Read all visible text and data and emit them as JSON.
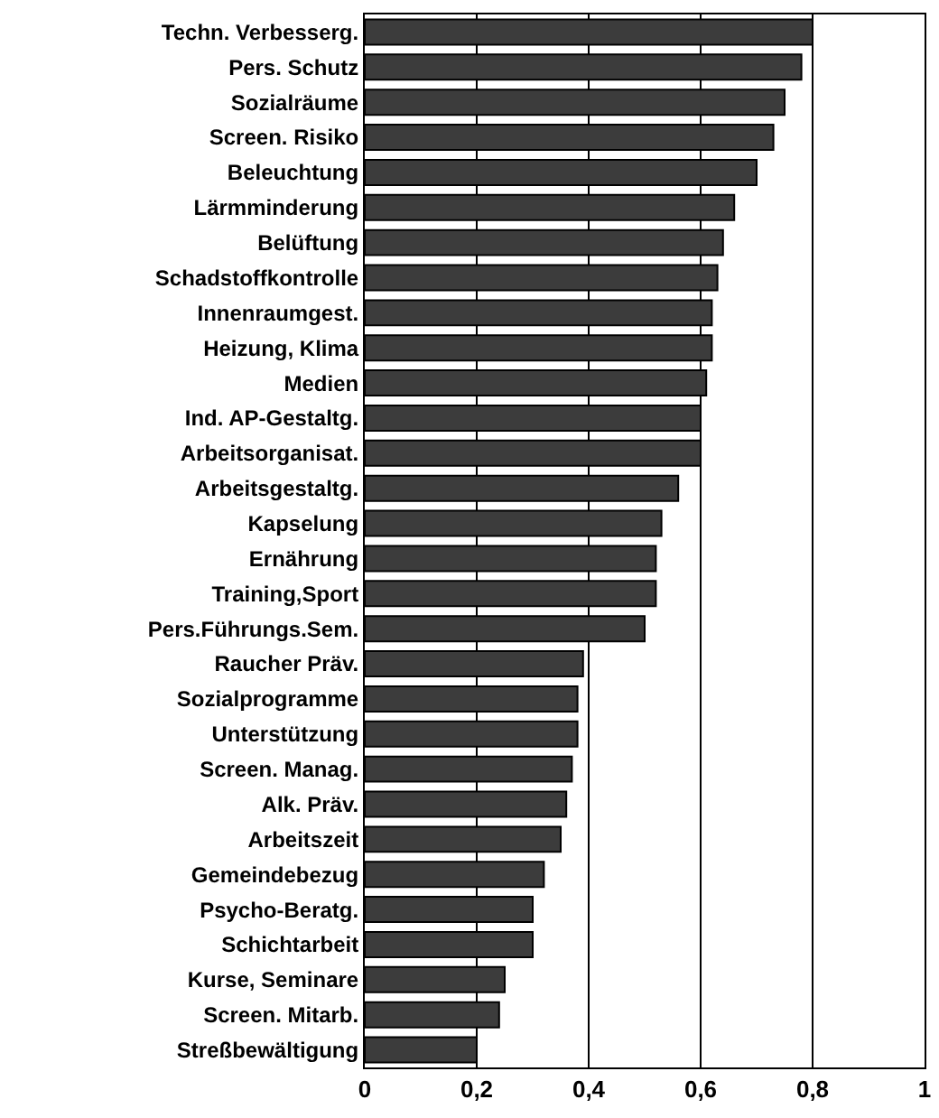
{
  "chart_data": {
    "type": "bar",
    "orientation": "horizontal",
    "categories": [
      "Techn. Verbesserg.",
      "Pers. Schutz",
      "Sozialräume",
      "Screen. Risiko",
      "Beleuchtung",
      "Lärmminderung",
      "Belüftung",
      "Schadstoffkontrolle",
      "Innenraumgest.",
      "Heizung, Klima",
      "Medien",
      "Ind. AP-Gestaltg.",
      "Arbeitsorganisat.",
      "Arbeitsgestaltg.",
      "Kapselung",
      "Ernährung",
      "Training,Sport",
      "Pers.Führungs.Sem.",
      "Raucher Präv.",
      "Sozialprogramme",
      "Unterstützung",
      "Screen. Manag.",
      "Alk. Präv.",
      "Arbeitszeit",
      "Gemeindebezug",
      "Psycho-Beratg.",
      "Schichtarbeit",
      "Kurse, Seminare",
      "Screen. Mitarb.",
      "Streßbewältigung"
    ],
    "values": [
      0.8,
      0.78,
      0.75,
      0.73,
      0.7,
      0.66,
      0.64,
      0.63,
      0.62,
      0.62,
      0.61,
      0.6,
      0.6,
      0.56,
      0.53,
      0.52,
      0.52,
      0.5,
      0.39,
      0.38,
      0.38,
      0.37,
      0.36,
      0.35,
      0.32,
      0.3,
      0.3,
      0.25,
      0.24,
      0.2
    ],
    "color": "#3c3c3c",
    "xlim": [
      0,
      1
    ],
    "xticks": [
      0,
      {
        "value": 0.2,
        "label": "0,2"
      },
      {
        "value": 0.4,
        "label": "0,4"
      },
      {
        "value": 0.6,
        "label": "0,6"
      },
      {
        "value": 0.8,
        "label": "0,8"
      },
      1
    ],
    "grid": "x"
  }
}
